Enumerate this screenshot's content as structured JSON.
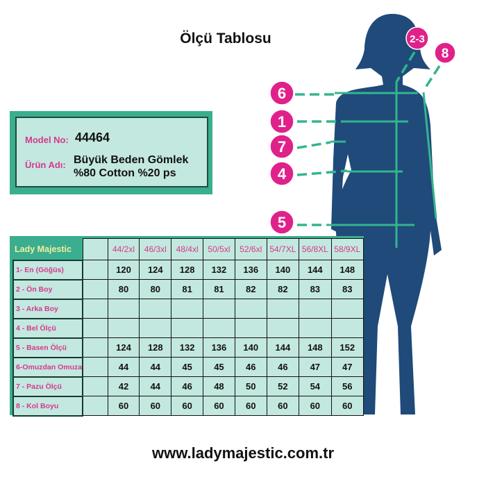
{
  "title": "Ölçü Tablosu",
  "info": {
    "model_label": "Model No:",
    "model_value": "44464",
    "product_label": "Ürün Adı:",
    "product_line1": "Büyük Beden Gömlek",
    "product_line2": "%80 Cotton %20 ps"
  },
  "figure": {
    "badges": [
      "2-3",
      "8",
      "6",
      "1",
      "7",
      "4",
      "5"
    ],
    "colors": {
      "silhouette": "#1f4a7a",
      "line": "#33b58e",
      "badge": "#e0218a"
    }
  },
  "table": {
    "brand": "Lady Majestic",
    "sizes": [
      "44/2xl",
      "46/3xl",
      "48/4xl",
      "50/5xl",
      "52/6xl",
      "54/7XL",
      "56/8XL",
      "58/9XL"
    ],
    "rows": [
      {
        "label": "1- En (Göğüs)",
        "values": [
          "120",
          "124",
          "128",
          "132",
          "136",
          "140",
          "144",
          "148"
        ]
      },
      {
        "label": "2 - Ön Boy",
        "values": [
          "80",
          "80",
          "81",
          "81",
          "82",
          "82",
          "83",
          "83"
        ]
      },
      {
        "label": "3 - Arka Boy",
        "values": [
          "",
          "",
          "",
          "",
          "",
          "",
          "",
          ""
        ]
      },
      {
        "label": "4 - Bel Ölçü",
        "values": [
          "",
          "",
          "",
          "",
          "",
          "",
          "",
          ""
        ]
      },
      {
        "label": "5 - Basen Ölçü",
        "values": [
          "124",
          "128",
          "132",
          "136",
          "140",
          "144",
          "148",
          "152"
        ]
      },
      {
        "label": "6-Omuzdan Omuza",
        "values": [
          "44",
          "44",
          "45",
          "45",
          "46",
          "46",
          "47",
          "47"
        ]
      },
      {
        "label": "7 - Pazu Ölçü",
        "values": [
          "42",
          "44",
          "46",
          "48",
          "50",
          "52",
          "54",
          "56"
        ]
      },
      {
        "label": "8 - Kol Boyu",
        "values": [
          "60",
          "60",
          "60",
          "60",
          "60",
          "60",
          "60",
          "60"
        ]
      }
    ]
  },
  "footer": {
    "url": "www.ladymajestic.com.tr"
  }
}
